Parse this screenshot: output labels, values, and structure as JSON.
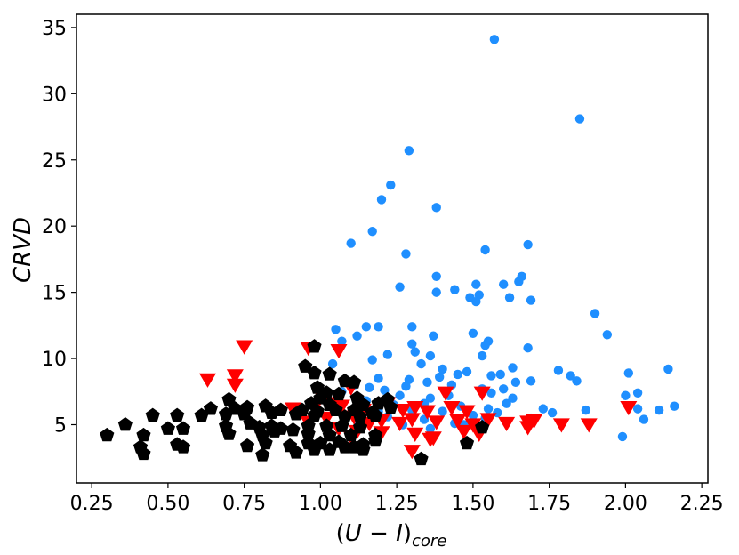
{
  "chart_data": {
    "type": "scatter",
    "title": "",
    "xlabel": "(U − I)core",
    "xlabel_parts": {
      "open": "(",
      "u": "U",
      "minus": " − ",
      "i": "I",
      "close": ")",
      "sub": "core"
    },
    "ylabel": "CRVD",
    "xlim": [
      0.2,
      2.27
    ],
    "ylim": [
      0.6,
      36
    ],
    "xticks": [
      0.25,
      0.5,
      0.75,
      1.0,
      1.25,
      1.5,
      1.75,
      2.0,
      2.25
    ],
    "xtick_labels": [
      "0.25",
      "0.50",
      "0.75",
      "1.00",
      "1.25",
      "1.50",
      "1.75",
      "2.00",
      "2.25"
    ],
    "yticks": [
      5,
      10,
      15,
      20,
      25,
      30,
      35
    ],
    "ytick_labels": [
      "5",
      "10",
      "15",
      "20",
      "25",
      "30",
      "35"
    ],
    "grid": false,
    "legend": "none",
    "series": [
      {
        "marker": "circle",
        "color": "#1f8fff",
        "points": [
          [
            1.57,
            34.1
          ],
          [
            1.85,
            28.1
          ],
          [
            1.29,
            25.7
          ],
          [
            1.23,
            23.1
          ],
          [
            1.2,
            22.0
          ],
          [
            1.38,
            21.4
          ],
          [
            1.17,
            19.6
          ],
          [
            1.1,
            18.7
          ],
          [
            1.68,
            18.6
          ],
          [
            1.54,
            18.2
          ],
          [
            1.28,
            17.9
          ],
          [
            1.38,
            16.2
          ],
          [
            1.66,
            16.2
          ],
          [
            1.65,
            15.8
          ],
          [
            1.6,
            15.6
          ],
          [
            1.51,
            15.6
          ],
          [
            1.26,
            15.4
          ],
          [
            1.38,
            15.0
          ],
          [
            1.44,
            15.2
          ],
          [
            1.52,
            14.8
          ],
          [
            1.49,
            14.6
          ],
          [
            1.51,
            14.3
          ],
          [
            1.62,
            14.6
          ],
          [
            1.69,
            14.4
          ],
          [
            1.9,
            13.4
          ],
          [
            1.94,
            11.8
          ],
          [
            1.05,
            12.2
          ],
          [
            1.15,
            12.4
          ],
          [
            1.19,
            12.4
          ],
          [
            1.3,
            12.4
          ],
          [
            1.37,
            11.7
          ],
          [
            1.12,
            11.7
          ],
          [
            1.5,
            11.9
          ],
          [
            1.55,
            11.3
          ],
          [
            1.54,
            11.0
          ],
          [
            1.3,
            11.1
          ],
          [
            1.07,
            11.3
          ],
          [
            1.68,
            10.8
          ],
          [
            1.22,
            10.3
          ],
          [
            1.31,
            10.5
          ],
          [
            1.36,
            10.2
          ],
          [
            1.53,
            10.2
          ],
          [
            1.04,
            9.6
          ],
          [
            1.17,
            9.9
          ],
          [
            1.33,
            9.6
          ],
          [
            1.4,
            9.2
          ],
          [
            1.48,
            9.0
          ],
          [
            1.63,
            9.3
          ],
          [
            1.78,
            9.1
          ],
          [
            2.01,
            8.9
          ],
          [
            2.14,
            9.2
          ],
          [
            1.45,
            8.8
          ],
          [
            1.56,
            8.7
          ],
          [
            1.59,
            8.8
          ],
          [
            1.19,
            8.5
          ],
          [
            1.29,
            8.4
          ],
          [
            1.35,
            8.2
          ],
          [
            1.39,
            8.6
          ],
          [
            1.69,
            8.3
          ],
          [
            1.82,
            8.7
          ],
          [
            1.84,
            8.3
          ],
          [
            1.11,
            8.0
          ],
          [
            1.16,
            7.8
          ],
          [
            1.21,
            7.6
          ],
          [
            1.28,
            7.9
          ],
          [
            1.43,
            8.0
          ],
          [
            1.53,
            7.7
          ],
          [
            1.6,
            7.7
          ],
          [
            1.64,
            8.2
          ],
          [
            1.07,
            7.5
          ],
          [
            1.26,
            7.2
          ],
          [
            1.36,
            7.0
          ],
          [
            1.42,
            7.2
          ],
          [
            1.56,
            7.4
          ],
          [
            1.63,
            7.0
          ],
          [
            2.0,
            7.2
          ],
          [
            2.04,
            7.4
          ],
          [
            1.15,
            6.8
          ],
          [
            1.24,
            6.5
          ],
          [
            1.34,
            6.6
          ],
          [
            1.46,
            6.4
          ],
          [
            1.55,
            6.2
          ],
          [
            1.61,
            6.6
          ],
          [
            1.73,
            6.2
          ],
          [
            1.87,
            6.1
          ],
          [
            2.04,
            6.2
          ],
          [
            2.11,
            6.1
          ],
          [
            2.16,
            6.4
          ],
          [
            1.19,
            6.0
          ],
          [
            1.3,
            6.1
          ],
          [
            1.4,
            6.0
          ],
          [
            1.5,
            5.7
          ],
          [
            1.58,
            5.9
          ],
          [
            1.76,
            5.9
          ],
          [
            2.06,
            5.4
          ],
          [
            1.12,
            5.3
          ],
          [
            1.22,
            5.6
          ],
          [
            1.34,
            5.4
          ],
          [
            1.44,
            5.1
          ],
          [
            1.54,
            5.5
          ],
          [
            1.69,
            5.5
          ],
          [
            1.99,
            4.1
          ],
          [
            1.27,
            5.0
          ],
          [
            1.47,
            5.0
          ],
          [
            1.36,
            4.7
          ]
        ]
      },
      {
        "marker": "triangle-down",
        "color": "#ff0000",
        "points": [
          [
            0.75,
            10.9
          ],
          [
            0.96,
            10.8
          ],
          [
            1.06,
            10.6
          ],
          [
            0.72,
            8.7
          ],
          [
            0.63,
            8.4
          ],
          [
            0.72,
            8.0
          ],
          [
            1.1,
            7.8
          ],
          [
            1.0,
            7.3
          ],
          [
            1.41,
            7.4
          ],
          [
            1.53,
            7.4
          ],
          [
            0.98,
            6.3
          ],
          [
            1.07,
            6.4
          ],
          [
            0.91,
            6.2
          ],
          [
            1.04,
            6.6
          ],
          [
            1.14,
            6.1
          ],
          [
            1.22,
            6.6
          ],
          [
            1.27,
            6.1
          ],
          [
            1.31,
            6.3
          ],
          [
            1.35,
            6.0
          ],
          [
            1.43,
            6.3
          ],
          [
            1.48,
            6.0
          ],
          [
            2.01,
            6.3
          ],
          [
            0.96,
            5.2
          ],
          [
            1.02,
            5.5
          ],
          [
            1.11,
            5.6
          ],
          [
            1.16,
            5.1
          ],
          [
            1.2,
            5.3
          ],
          [
            1.26,
            5.1
          ],
          [
            1.3,
            5.4
          ],
          [
            1.38,
            5.2
          ],
          [
            1.45,
            5.3
          ],
          [
            1.5,
            5.0
          ],
          [
            1.55,
            5.4
          ],
          [
            1.61,
            5.1
          ],
          [
            1.68,
            5.2
          ],
          [
            1.7,
            5.3
          ],
          [
            1.79,
            5.0
          ],
          [
            1.88,
            5.0
          ],
          [
            1.06,
            4.7
          ],
          [
            1.12,
            4.5
          ],
          [
            1.2,
            4.4
          ],
          [
            1.31,
            4.3
          ],
          [
            1.37,
            4.0
          ],
          [
            1.47,
            4.5
          ],
          [
            1.52,
            4.3
          ],
          [
            1.68,
            4.8
          ],
          [
            1.1,
            4.1
          ],
          [
            1.3,
            3.0
          ],
          [
            1.36,
            3.9
          ]
        ]
      },
      {
        "marker": "pentagon",
        "color": "#000000",
        "points": [
          [
            0.98,
            10.9
          ],
          [
            0.95,
            9.4
          ],
          [
            0.98,
            8.9
          ],
          [
            1.03,
            8.8
          ],
          [
            1.08,
            8.3
          ],
          [
            1.11,
            8.2
          ],
          [
            0.99,
            7.8
          ],
          [
            1.02,
            7.4
          ],
          [
            1.06,
            7.3
          ],
          [
            1.0,
            7.0
          ],
          [
            0.7,
            6.9
          ],
          [
            1.12,
            7.0
          ],
          [
            1.22,
            6.9
          ],
          [
            0.97,
            6.6
          ],
          [
            1.03,
            6.5
          ],
          [
            1.14,
            6.5
          ],
          [
            1.19,
            6.6
          ],
          [
            1.23,
            6.3
          ],
          [
            0.64,
            6.2
          ],
          [
            0.72,
            6.2
          ],
          [
            0.76,
            6.3
          ],
          [
            0.82,
            6.4
          ],
          [
            0.87,
            6.1
          ],
          [
            0.94,
            6.1
          ],
          [
            0.99,
            6.0
          ],
          [
            1.05,
            6.1
          ],
          [
            1.11,
            6.1
          ],
          [
            1.17,
            5.9
          ],
          [
            0.45,
            5.7
          ],
          [
            0.53,
            5.7
          ],
          [
            0.61,
            5.7
          ],
          [
            0.69,
            5.8
          ],
          [
            0.75,
            5.8
          ],
          [
            0.84,
            5.9
          ],
          [
            0.92,
            5.8
          ],
          [
            0.98,
            5.7
          ],
          [
            1.08,
            5.6
          ],
          [
            1.13,
            5.6
          ],
          [
            1.18,
            5.7
          ],
          [
            0.36,
            5.0
          ],
          [
            0.69,
            4.9
          ],
          [
            0.77,
            5.1
          ],
          [
            0.8,
            4.8
          ],
          [
            0.84,
            4.9
          ],
          [
            0.87,
            4.7
          ],
          [
            0.91,
            4.6
          ],
          [
            0.96,
            4.9
          ],
          [
            1.02,
            4.9
          ],
          [
            1.07,
            4.9
          ],
          [
            1.13,
            4.8
          ],
          [
            1.53,
            4.8
          ],
          [
            0.3,
            4.2
          ],
          [
            0.42,
            4.2
          ],
          [
            0.5,
            4.7
          ],
          [
            0.55,
            4.7
          ],
          [
            0.7,
            4.3
          ],
          [
            0.81,
            4.2
          ],
          [
            0.85,
            4.5
          ],
          [
            0.96,
            4.3
          ],
          [
            1.03,
            4.2
          ],
          [
            1.1,
            4.2
          ],
          [
            1.18,
            4.2
          ],
          [
            0.41,
            3.3
          ],
          [
            0.53,
            3.5
          ],
          [
            0.55,
            3.3
          ],
          [
            0.76,
            3.4
          ],
          [
            0.82,
            3.6
          ],
          [
            0.9,
            3.4
          ],
          [
            0.96,
            3.6
          ],
          [
            1.0,
            3.6
          ],
          [
            1.06,
            3.7
          ],
          [
            1.11,
            3.3
          ],
          [
            1.14,
            3.5
          ],
          [
            1.18,
            3.8
          ],
          [
            1.48,
            3.6
          ],
          [
            0.42,
            2.8
          ],
          [
            0.81,
            2.7
          ],
          [
            0.92,
            2.9
          ],
          [
            0.98,
            3.1
          ],
          [
            1.03,
            3.1
          ],
          [
            1.08,
            3.3
          ],
          [
            1.14,
            3.1
          ],
          [
            1.33,
            2.4
          ]
        ]
      }
    ]
  }
}
